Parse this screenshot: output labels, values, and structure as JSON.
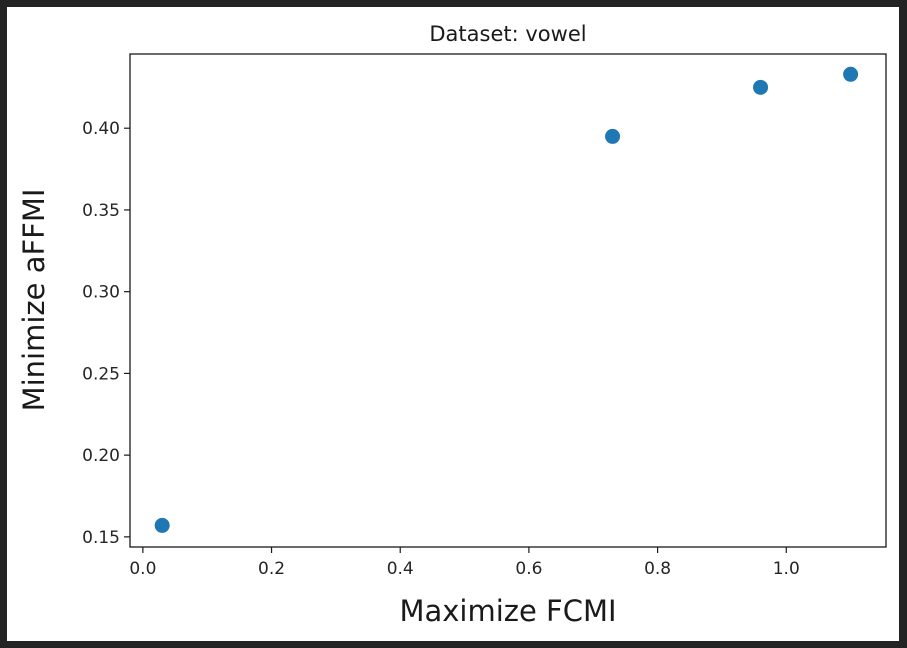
{
  "chart_data": {
    "type": "scatter",
    "title": "Dataset: vowel",
    "xlabel": "Maximize FCMI",
    "ylabel": "Minimize aFFMI",
    "xlim": [
      -0.02,
      1.155
    ],
    "ylim": [
      0.1438,
      0.4454
    ],
    "xticks": [
      0.0,
      0.2,
      0.4,
      0.6,
      0.8,
      1.0
    ],
    "xtick_labels": [
      "0.0",
      "0.2",
      "0.4",
      "0.6",
      "0.8",
      "1.0"
    ],
    "yticks": [
      0.15,
      0.2,
      0.25,
      0.3,
      0.35,
      0.4
    ],
    "ytick_labels": [
      "0.15",
      "0.20",
      "0.25",
      "0.30",
      "0.35",
      "0.40"
    ],
    "grid": false,
    "series": [
      {
        "color": "#1f77b4",
        "points": [
          {
            "x": 0.03,
            "y": 0.157
          },
          {
            "x": 0.73,
            "y": 0.395
          },
          {
            "x": 0.96,
            "y": 0.425
          },
          {
            "x": 1.1,
            "y": 0.433
          }
        ]
      }
    ]
  }
}
